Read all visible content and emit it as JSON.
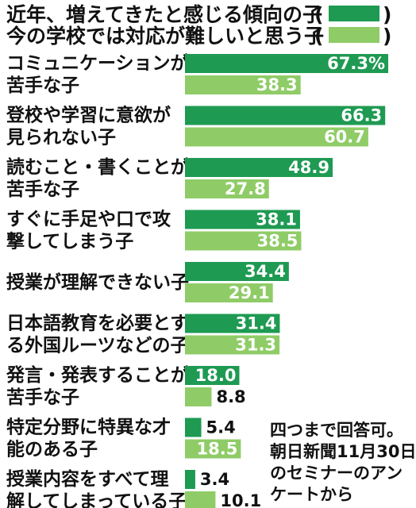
{
  "chart_data": {
    "type": "bar",
    "orientation": "horizontal",
    "legend": [
      {
        "name": "近年、増えてきたと感じる傾向の子",
        "color": "#1e9a52"
      },
      {
        "name": "今の学校では対応が難しいと思う子",
        "color": "#8fcc67"
      }
    ],
    "categories": [
      [
        "コミュニケーションが",
        "苦手な子"
      ],
      [
        "登校や学習に意欲が",
        "見られない子"
      ],
      [
        "読むこと・書くことが",
        "苦手な子"
      ],
      [
        "すぐに手足や口で攻",
        "撃してしまう子"
      ],
      [
        "授業が理解できない子"
      ],
      [
        "日本語教育を必要とす",
        "る外国ルーツなどの子"
      ],
      [
        "発言・発表することが",
        "苦手な子"
      ],
      [
        "特定分野に特異な才",
        "能のある子"
      ],
      [
        "授業内容をすべて理",
        "解してしまっている子"
      ]
    ],
    "series": [
      {
        "name": "近年、増えてきたと感じる傾向の子",
        "values": [
          67.3,
          66.3,
          48.9,
          38.1,
          34.4,
          31.4,
          18.0,
          5.4,
          3.4
        ]
      },
      {
        "name": "今の学校では対応が難しいと思う子",
        "values": [
          38.3,
          60.7,
          27.8,
          38.5,
          29.1,
          31.3,
          8.8,
          18.5,
          10.1
        ]
      }
    ],
    "value_labels": [
      [
        "67.3%",
        "66.3",
        "48.9",
        "38.1",
        "34.4",
        "31.4",
        "18.0",
        "5.4",
        "3.4"
      ],
      [
        "38.3",
        "60.7",
        "27.8",
        "38.5",
        "29.1",
        "31.3",
        "8.8",
        "18.5",
        "10.1"
      ]
    ],
    "xlim": [
      0,
      67.3
    ],
    "grid": false,
    "legend_placement": "top",
    "note": [
      "四つまで回答可。",
      "朝日新聞11月30日",
      "のセミナーのアン",
      "ケートから"
    ]
  }
}
